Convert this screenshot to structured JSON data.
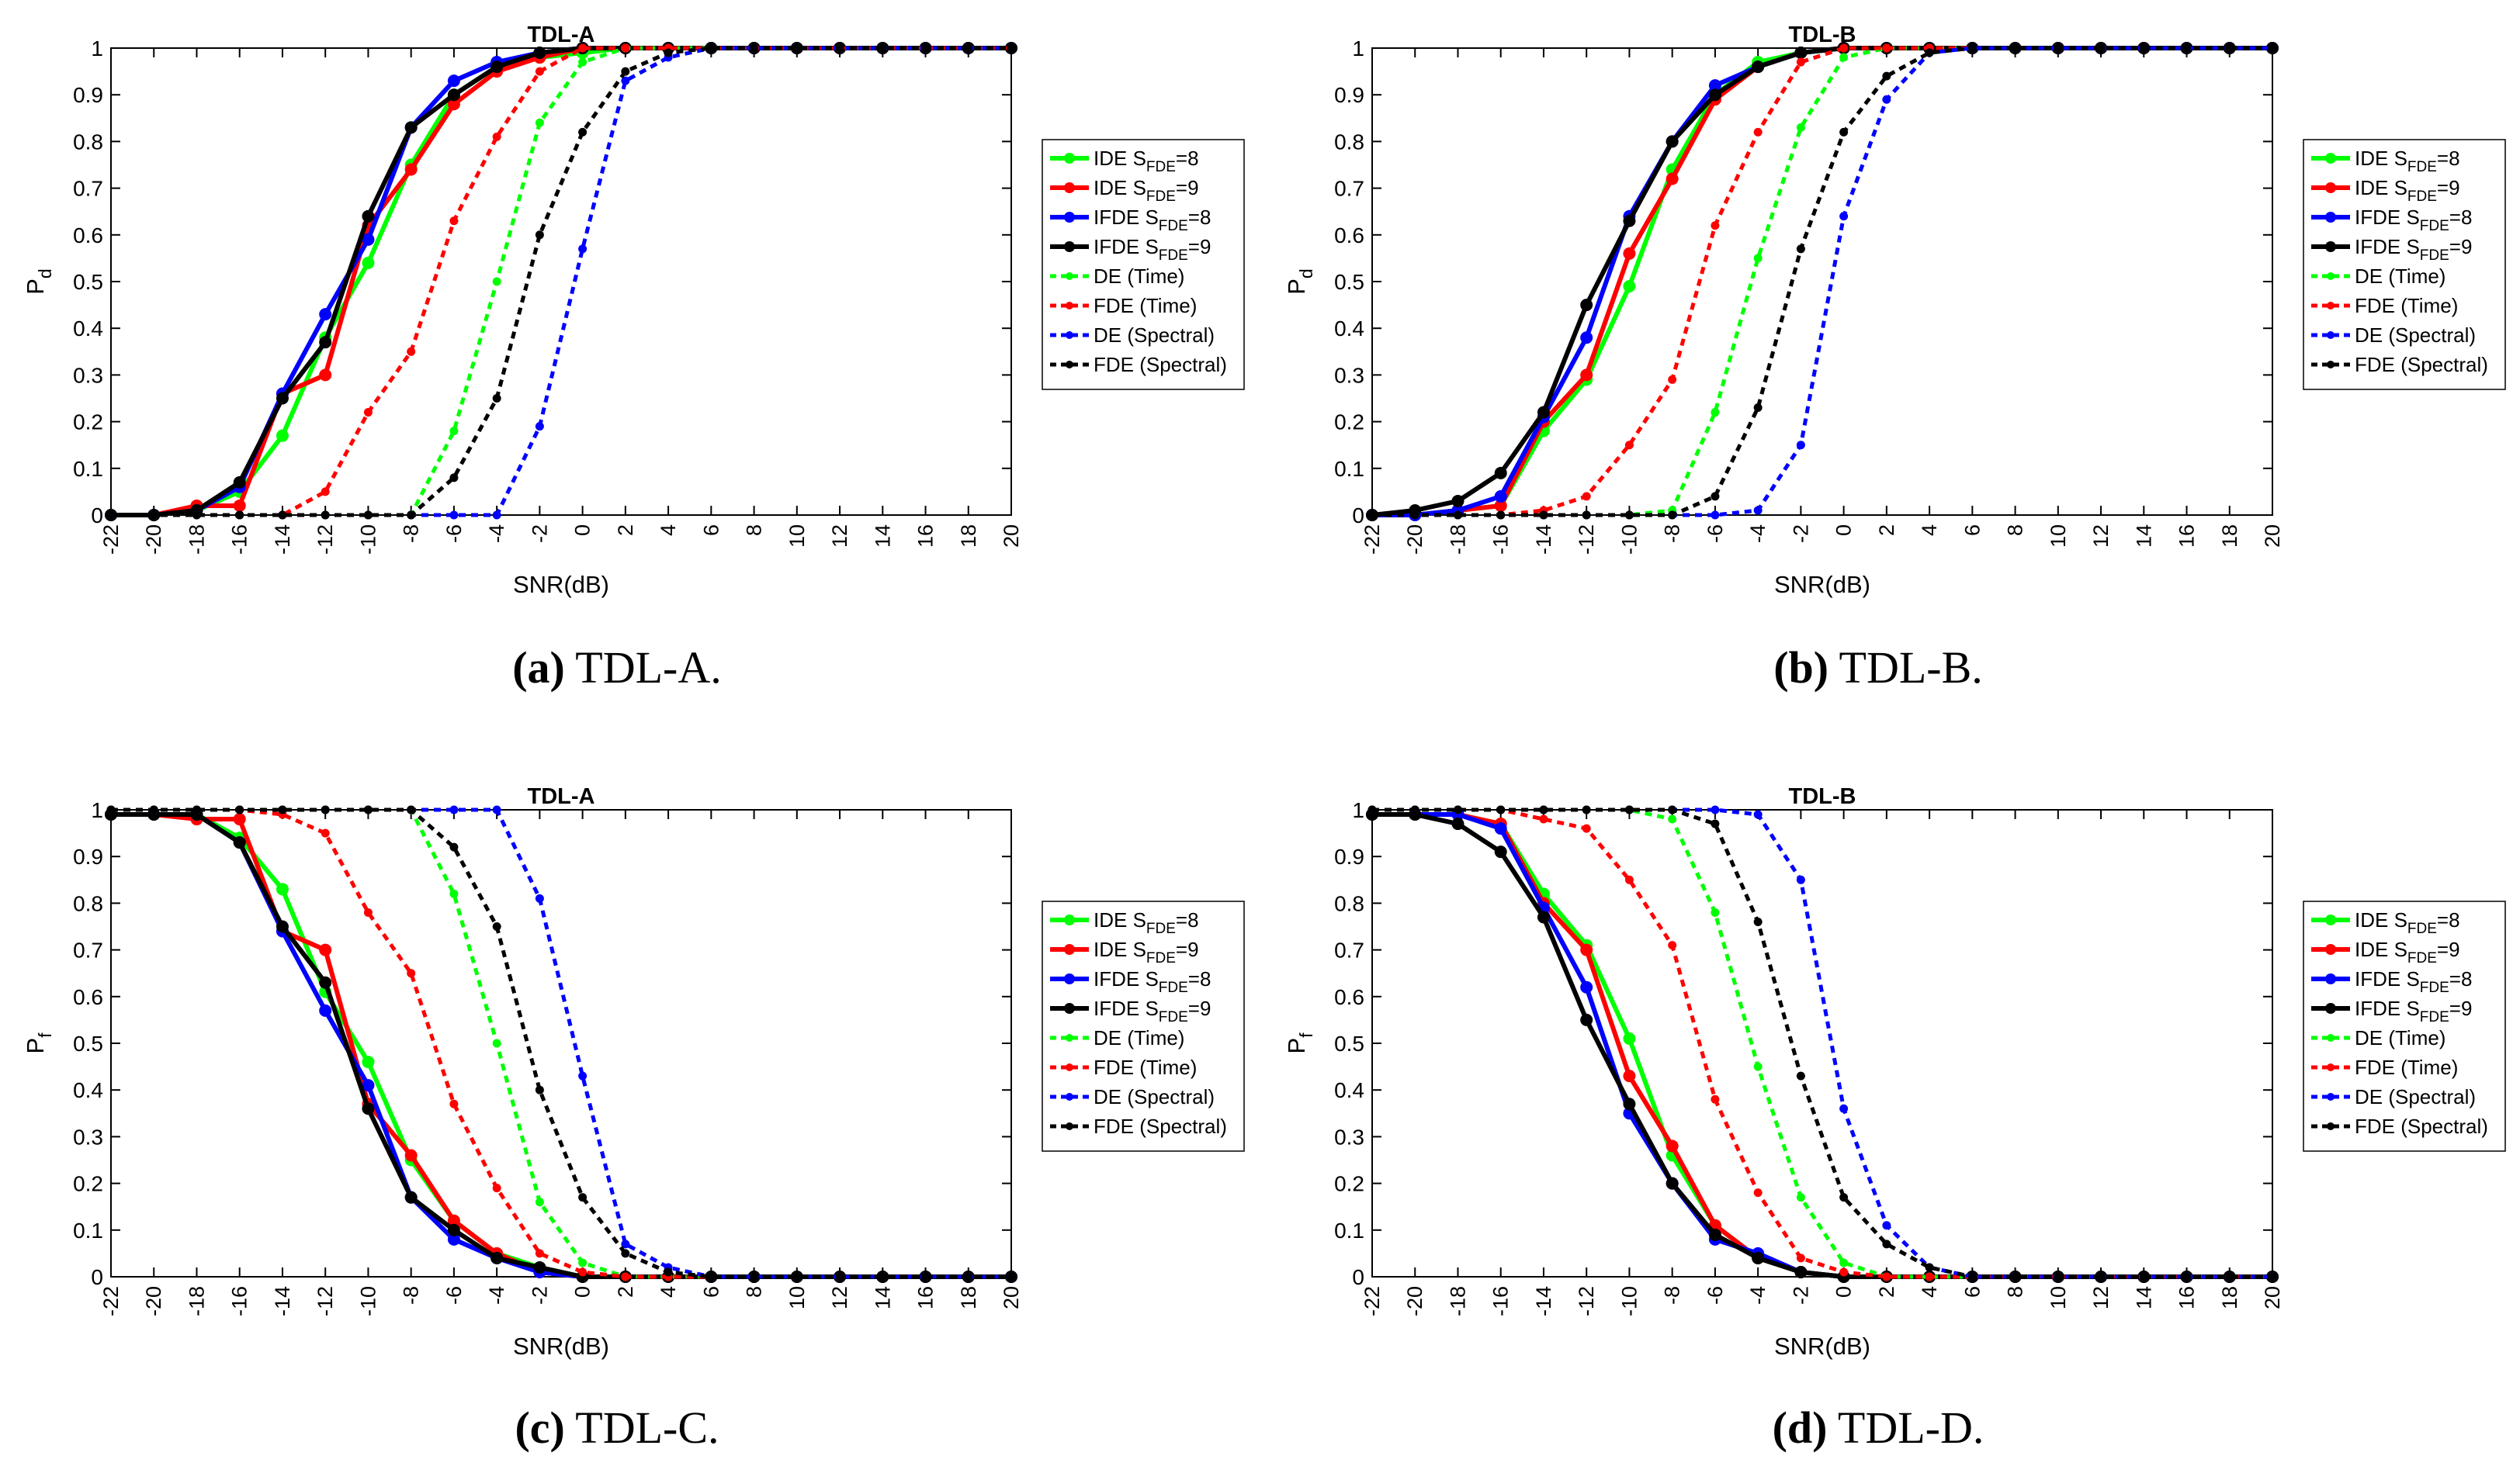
{
  "figure": {
    "common": {
      "x": [
        -22,
        -20,
        -18,
        -16,
        -14,
        -12,
        -10,
        -8,
        -6,
        -4,
        -2,
        0,
        2,
        4,
        6,
        8,
        10,
        12,
        14,
        16,
        18,
        20
      ],
      "xticks": [
        "-22",
        "-20",
        "-18",
        "-16",
        "-14",
        "-12",
        "-10",
        "-8",
        "-6",
        "-4",
        "-2",
        "0",
        "2",
        "4",
        "6",
        "8",
        "10",
        "12",
        "14",
        "16",
        "18",
        "20"
      ],
      "yticks": [
        "0",
        "0.1",
        "0.2",
        "0.3",
        "0.4",
        "0.5",
        "0.6",
        "0.7",
        "0.8",
        "0.9",
        "1"
      ],
      "xlabel": "SNR(dB)",
      "xlim": [
        -22,
        20
      ],
      "ylim": [
        0,
        1
      ],
      "legend": [
        {
          "main": "IDE S",
          "sub": "FDE",
          "tail": "=8"
        },
        {
          "main": "IDE S",
          "sub": "FDE",
          "tail": "=9"
        },
        {
          "main": "IFDE S",
          "sub": "FDE",
          "tail": "=8"
        },
        {
          "main": "IFDE S",
          "sub": "FDE",
          "tail": "=9"
        },
        {
          "main": "DE (Time)",
          "sub": "",
          "tail": ""
        },
        {
          "main": "FDE (Time)",
          "sub": "",
          "tail": ""
        },
        {
          "main": "DE (Spectral)",
          "sub": "",
          "tail": ""
        },
        {
          "main": "FDE (Spectral)",
          "sub": "",
          "tail": ""
        }
      ],
      "series_styles": [
        {
          "color": "#00ff00",
          "dashed": false
        },
        {
          "color": "#ff0000",
          "dashed": false
        },
        {
          "color": "#0000ff",
          "dashed": false
        },
        {
          "color": "#000000",
          "dashed": false
        },
        {
          "color": "#00ff00",
          "dashed": true
        },
        {
          "color": "#ff0000",
          "dashed": true
        },
        {
          "color": "#0000ff",
          "dashed": true
        },
        {
          "color": "#000000",
          "dashed": true
        }
      ]
    },
    "captions": [
      {
        "label": "(a)",
        "text": " TDL-A."
      },
      {
        "label": "(b)",
        "text": " TDL-B."
      },
      {
        "label": "(c)",
        "text": " TDL-C."
      },
      {
        "label": "(d)",
        "text": " TDL-D."
      }
    ]
  },
  "chart_data": [
    {
      "type": "line",
      "title": "TDL-A",
      "ylabel_main": "P",
      "ylabel_sub": "d",
      "series": [
        {
          "name": "IDE SFDE=8",
          "values": [
            0.0,
            0.0,
            0.01,
            0.05,
            0.17,
            0.38,
            0.54,
            0.75,
            0.9,
            0.96,
            0.98,
            0.99,
            1,
            1,
            1,
            1,
            1,
            1,
            1,
            1,
            1,
            1
          ]
        },
        {
          "name": "IDE SFDE=9",
          "values": [
            0.0,
            0.0,
            0.02,
            0.02,
            0.26,
            0.3,
            0.62,
            0.74,
            0.88,
            0.95,
            0.98,
            1,
            1,
            1,
            1,
            1,
            1,
            1,
            1,
            1,
            1,
            1
          ]
        },
        {
          "name": "IFDE SFDE=8",
          "values": [
            0.0,
            0.0,
            0.01,
            0.06,
            0.26,
            0.43,
            0.59,
            0.83,
            0.93,
            0.97,
            0.99,
            1,
            1,
            1,
            1,
            1,
            1,
            1,
            1,
            1,
            1,
            1
          ]
        },
        {
          "name": "IFDE SFDE=9",
          "values": [
            0.0,
            0.0,
            0.01,
            0.07,
            0.25,
            0.37,
            0.64,
            0.83,
            0.9,
            0.96,
            0.99,
            1,
            1,
            1,
            1,
            1,
            1,
            1,
            1,
            1,
            1,
            1
          ]
        },
        {
          "name": "DE (Time)",
          "values": [
            0,
            0,
            0,
            0,
            0,
            0,
            0,
            0,
            0.18,
            0.5,
            0.84,
            0.97,
            1,
            1,
            1,
            1,
            1,
            1,
            1,
            1,
            1,
            1
          ]
        },
        {
          "name": "FDE (Time)",
          "values": [
            0,
            0,
            0,
            0,
            0,
            0.05,
            0.22,
            0.35,
            0.63,
            0.81,
            0.95,
            1,
            1,
            1,
            1,
            1,
            1,
            1,
            1,
            1,
            1,
            1
          ]
        },
        {
          "name": "DE (Spectral)",
          "values": [
            0,
            0,
            0,
            0,
            0,
            0,
            0,
            0,
            0,
            0,
            0.19,
            0.57,
            0.93,
            0.98,
            1,
            1,
            1,
            1,
            1,
            1,
            1,
            1
          ]
        },
        {
          "name": "FDE (Spectral)",
          "values": [
            0,
            0,
            0,
            0,
            0,
            0,
            0,
            0,
            0.08,
            0.25,
            0.6,
            0.82,
            0.95,
            0.99,
            1,
            1,
            1,
            1,
            1,
            1,
            1,
            1
          ]
        }
      ]
    },
    {
      "type": "line",
      "title": "TDL-B",
      "ylabel_main": "P",
      "ylabel_sub": "d",
      "series": [
        {
          "name": "IDE SFDE=8",
          "values": [
            0.0,
            0.0,
            0.01,
            0.02,
            0.18,
            0.29,
            0.49,
            0.74,
            0.9,
            0.97,
            0.99,
            1,
            1,
            1,
            1,
            1,
            1,
            1,
            1,
            1,
            1,
            1
          ]
        },
        {
          "name": "IDE SFDE=9",
          "values": [
            0.0,
            0.0,
            0.01,
            0.02,
            0.2,
            0.3,
            0.56,
            0.72,
            0.89,
            0.96,
            0.99,
            1,
            1,
            1,
            1,
            1,
            1,
            1,
            1,
            1,
            1,
            1
          ]
        },
        {
          "name": "IFDE SFDE=8",
          "values": [
            0.0,
            0.0,
            0.01,
            0.04,
            0.21,
            0.38,
            0.64,
            0.8,
            0.92,
            0.96,
            0.99,
            1,
            1,
            1,
            1,
            1,
            1,
            1,
            1,
            1,
            1,
            1
          ]
        },
        {
          "name": "IFDE SFDE=9",
          "values": [
            0.0,
            0.01,
            0.03,
            0.09,
            0.22,
            0.45,
            0.63,
            0.8,
            0.9,
            0.96,
            0.99,
            1,
            1,
            1,
            1,
            1,
            1,
            1,
            1,
            1,
            1,
            1
          ]
        },
        {
          "name": "DE (Time)",
          "values": [
            0,
            0,
            0,
            0,
            0,
            0,
            0,
            0.01,
            0.22,
            0.55,
            0.83,
            0.98,
            1,
            1,
            1,
            1,
            1,
            1,
            1,
            1,
            1,
            1
          ]
        },
        {
          "name": "FDE (Time)",
          "values": [
            0,
            0,
            0,
            0,
            0.01,
            0.04,
            0.15,
            0.29,
            0.62,
            0.82,
            0.97,
            1,
            1,
            1,
            1,
            1,
            1,
            1,
            1,
            1,
            1,
            1
          ]
        },
        {
          "name": "DE (Spectral)",
          "values": [
            0,
            0,
            0,
            0,
            0,
            0,
            0,
            0,
            0,
            0.01,
            0.15,
            0.64,
            0.89,
            0.99,
            1,
            1,
            1,
            1,
            1,
            1,
            1,
            1
          ]
        },
        {
          "name": "FDE (Spectral)",
          "values": [
            0,
            0,
            0,
            0,
            0,
            0,
            0,
            0,
            0.04,
            0.23,
            0.57,
            0.82,
            0.94,
            0.99,
            1,
            1,
            1,
            1,
            1,
            1,
            1,
            1
          ]
        }
      ]
    },
    {
      "type": "line",
      "title": "TDL-A",
      "ylabel_main": "P",
      "ylabel_sub": "f",
      "series": [
        {
          "name": "IDE SFDE=8",
          "values": [
            0.99,
            0.99,
            0.99,
            0.94,
            0.83,
            0.61,
            0.46,
            0.25,
            0.12,
            0.05,
            0.02,
            0.0,
            0,
            0,
            0,
            0,
            0,
            0,
            0,
            0,
            0,
            0
          ]
        },
        {
          "name": "IDE SFDE=9",
          "values": [
            0.99,
            0.99,
            0.98,
            0.98,
            0.74,
            0.7,
            0.37,
            0.26,
            0.12,
            0.05,
            0.01,
            0.0,
            0,
            0,
            0,
            0,
            0,
            0,
            0,
            0,
            0,
            0
          ]
        },
        {
          "name": "IFDE SFDE=8",
          "values": [
            0.99,
            0.99,
            0.99,
            0.93,
            0.74,
            0.57,
            0.41,
            0.17,
            0.08,
            0.04,
            0.01,
            0.0,
            0,
            0,
            0,
            0,
            0,
            0,
            0,
            0,
            0,
            0
          ]
        },
        {
          "name": "IFDE SFDE=9",
          "values": [
            0.99,
            0.99,
            0.99,
            0.93,
            0.75,
            0.63,
            0.36,
            0.17,
            0.1,
            0.04,
            0.02,
            0.0,
            0,
            0,
            0,
            0,
            0,
            0,
            0,
            0,
            0,
            0
          ]
        },
        {
          "name": "DE (Time)",
          "values": [
            1,
            1,
            1,
            1,
            1,
            1,
            1,
            1,
            0.82,
            0.5,
            0.16,
            0.03,
            0,
            0,
            0,
            0,
            0,
            0,
            0,
            0,
            0,
            0
          ]
        },
        {
          "name": "FDE (Time)",
          "values": [
            1,
            1,
            1,
            1,
            0.99,
            0.95,
            0.78,
            0.65,
            0.37,
            0.19,
            0.05,
            0.01,
            0,
            0,
            0,
            0,
            0,
            0,
            0,
            0,
            0,
            0
          ]
        },
        {
          "name": "DE (Spectral)",
          "values": [
            1,
            1,
            1,
            1,
            1,
            1,
            1,
            1,
            1,
            1,
            0.81,
            0.43,
            0.07,
            0.02,
            0,
            0,
            0,
            0,
            0,
            0,
            0,
            0
          ]
        },
        {
          "name": "FDE (Spectral)",
          "values": [
            1,
            1,
            1,
            1,
            1,
            1,
            1,
            1,
            0.92,
            0.75,
            0.4,
            0.17,
            0.05,
            0.01,
            0,
            0,
            0,
            0,
            0,
            0,
            0,
            0
          ]
        }
      ]
    },
    {
      "type": "line",
      "title": "TDL-B",
      "ylabel_main": "P",
      "ylabel_sub": "f",
      "series": [
        {
          "name": "IDE SFDE=8",
          "values": [
            0.99,
            0.99,
            0.99,
            0.97,
            0.82,
            0.71,
            0.51,
            0.26,
            0.11,
            0.04,
            0.01,
            0.0,
            0,
            0,
            0,
            0,
            0,
            0,
            0,
            0,
            0,
            0
          ]
        },
        {
          "name": "IDE SFDE=9",
          "values": [
            0.99,
            0.99,
            0.99,
            0.97,
            0.8,
            0.7,
            0.43,
            0.28,
            0.11,
            0.04,
            0.01,
            0.0,
            0,
            0,
            0,
            0,
            0,
            0,
            0,
            0,
            0,
            0
          ]
        },
        {
          "name": "IFDE SFDE=8",
          "values": [
            0.99,
            0.99,
            0.99,
            0.96,
            0.79,
            0.62,
            0.35,
            0.2,
            0.08,
            0.05,
            0.01,
            0.0,
            0,
            0,
            0,
            0,
            0,
            0,
            0,
            0,
            0,
            0
          ]
        },
        {
          "name": "IFDE SFDE=9",
          "values": [
            0.99,
            0.99,
            0.97,
            0.91,
            0.77,
            0.55,
            0.37,
            0.2,
            0.09,
            0.04,
            0.01,
            0.0,
            0,
            0,
            0,
            0,
            0,
            0,
            0,
            0,
            0,
            0
          ]
        },
        {
          "name": "DE (Time)",
          "values": [
            1,
            1,
            1,
            1,
            1,
            1,
            1,
            0.98,
            0.78,
            0.45,
            0.17,
            0.03,
            0,
            0,
            0,
            0,
            0,
            0,
            0,
            0,
            0,
            0
          ]
        },
        {
          "name": "FDE (Time)",
          "values": [
            1,
            1,
            1,
            1,
            0.98,
            0.96,
            0.85,
            0.71,
            0.38,
            0.18,
            0.04,
            0.01,
            0,
            0,
            0,
            0,
            0,
            0,
            0,
            0,
            0,
            0
          ]
        },
        {
          "name": "DE (Spectral)",
          "values": [
            1,
            1,
            1,
            1,
            1,
            1,
            1,
            1,
            1,
            0.99,
            0.85,
            0.36,
            0.11,
            0.02,
            0,
            0,
            0,
            0,
            0,
            0,
            0,
            0
          ]
        },
        {
          "name": "FDE (Spectral)",
          "values": [
            1,
            1,
            1,
            1,
            1,
            1,
            1,
            1,
            0.97,
            0.76,
            0.43,
            0.17,
            0.07,
            0.02,
            0,
            0,
            0,
            0,
            0,
            0,
            0,
            0
          ]
        }
      ]
    }
  ]
}
